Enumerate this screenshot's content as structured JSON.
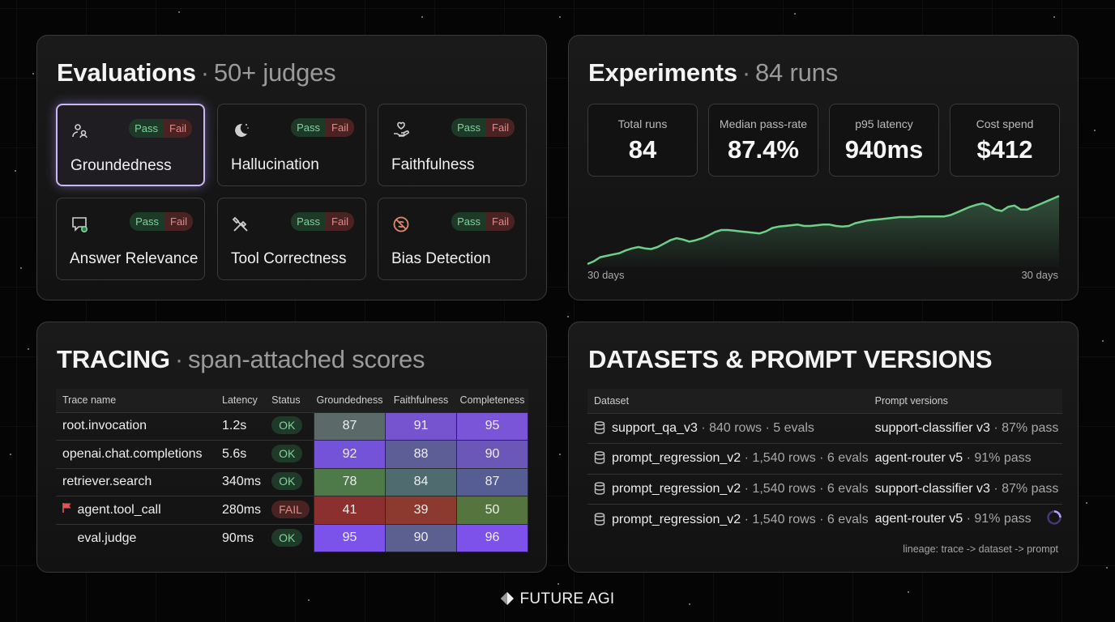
{
  "evaluations": {
    "title": "Evaluations",
    "subtitle": "50+ judges",
    "pass_label": "Pass",
    "fail_label": "Fail",
    "judges": [
      {
        "name": "Groundedness",
        "icon": "grounding-icon",
        "selected": true
      },
      {
        "name": "Hallucination",
        "icon": "moon-sparkle-icon",
        "selected": false
      },
      {
        "name": "Faithfulness",
        "icon": "hand-heart-icon",
        "selected": false
      },
      {
        "name": "Answer Relevance",
        "icon": "chat-check-icon",
        "selected": false
      },
      {
        "name": "Tool Correctness",
        "icon": "tools-icon",
        "selected": false
      },
      {
        "name": "Bias Detection",
        "icon": "no-bias-icon",
        "selected": false
      }
    ]
  },
  "experiments": {
    "title": "Experiments",
    "subtitle": "84 runs",
    "stats": [
      {
        "label": "Total runs",
        "value": "84"
      },
      {
        "label": "Median pass-rate",
        "value": "87.4%"
      },
      {
        "label": "p95 latency",
        "value": "940ms"
      },
      {
        "label": "Cost spend",
        "value": "$412"
      }
    ],
    "chart_data": {
      "type": "area",
      "x_start_label": "30 days",
      "x_end_label": "30 days",
      "values": [
        0.0,
        0.04,
        0.1,
        0.12,
        0.14,
        0.16,
        0.2,
        0.23,
        0.25,
        0.23,
        0.22,
        0.25,
        0.3,
        0.35,
        0.38,
        0.36,
        0.33,
        0.35,
        0.38,
        0.42,
        0.47,
        0.5,
        0.5,
        0.49,
        0.48,
        0.47,
        0.46,
        0.45,
        0.48,
        0.53,
        0.55,
        0.56,
        0.57,
        0.58,
        0.56,
        0.56,
        0.57,
        0.58,
        0.58,
        0.56,
        0.55,
        0.56,
        0.6,
        0.62,
        0.64,
        0.65,
        0.66,
        0.67,
        0.68,
        0.69,
        0.69,
        0.69,
        0.7,
        0.7,
        0.7,
        0.7,
        0.7,
        0.72,
        0.76,
        0.8,
        0.84,
        0.87,
        0.89,
        0.86,
        0.8,
        0.78,
        0.84,
        0.86,
        0.8,
        0.8,
        0.84,
        0.88,
        0.92,
        0.96,
        1.0
      ],
      "color": "#6fcf8a"
    }
  },
  "tracing": {
    "title": "TRACING",
    "subtitle": "span-attached scores",
    "columns": [
      "Trace name",
      "Latency",
      "Status",
      "Groundedness",
      "Faithfulness",
      "Completeness"
    ],
    "rows": [
      {
        "name": "root.invocation",
        "latency": "1.2s",
        "status": "OK",
        "scores": [
          "87",
          "91",
          "95"
        ],
        "flagged": false
      },
      {
        "name": "openai.chat.completions",
        "latency": "5.6s",
        "status": "OK",
        "scores": [
          "92",
          "88",
          "90"
        ],
        "flagged": false
      },
      {
        "name": "retriever.search",
        "latency": "340ms",
        "status": "OK",
        "scores": [
          "78",
          "84",
          "87"
        ],
        "flagged": false
      },
      {
        "name": "agent.tool_call",
        "latency": "280ms",
        "status": "FAIL",
        "scores": [
          "41",
          "39",
          "50"
        ],
        "flagged": true
      },
      {
        "name": "eval.judge",
        "latency": "90ms",
        "status": "OK",
        "scores": [
          "95",
          "90",
          "96"
        ],
        "flagged": false
      }
    ]
  },
  "datasets": {
    "title": "DATASETS & PROMPT VERSIONS",
    "columns": [
      "Dataset",
      "Prompt versions"
    ],
    "rows": [
      {
        "dataset": "support_qa_v3",
        "meta": "· 840 rows · 5 evals",
        "prompt": "support-classifier v3",
        "pass": "· 87% pass",
        "loading": false
      },
      {
        "dataset": "prompt_regression_v2",
        "meta": "· 1,540 rows · 6 evals",
        "prompt": "agent-router v5",
        "pass": "· 91% pass",
        "loading": false
      },
      {
        "dataset": "prompt_regression_v2",
        "meta": "· 1,540 rows · 6 evals",
        "prompt": "support-classifier v3",
        "pass": "· 87% pass",
        "loading": false
      },
      {
        "dataset": "prompt_regression_v2",
        "meta": "· 1,540 rows · 6 evals",
        "prompt": "agent-router v5",
        "pass": "· 91% pass",
        "loading": true
      }
    ],
    "lineage": "lineage: trace -> dataset -> prompt"
  },
  "brand": "FUTURE AGI"
}
